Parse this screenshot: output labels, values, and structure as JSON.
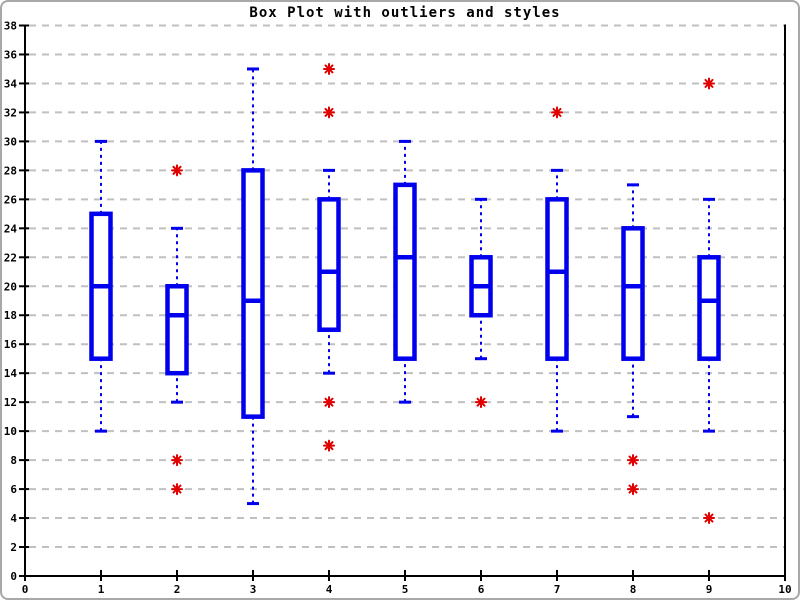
{
  "title": "Box Plot with outliers and styles",
  "colors": {
    "box": "#0000ee",
    "outlier": "#e00000",
    "grid": "#c0c0c0",
    "axis": "#000000",
    "background": "#ffffff",
    "frame": "#a8a8a8"
  },
  "chart_data": {
    "type": "boxplot",
    "title": "Box Plot with outliers and styles",
    "xlabel": "",
    "ylabel": "",
    "xlim": [
      0,
      10
    ],
    "ylim": [
      0,
      38
    ],
    "x_ticks": [
      0,
      1,
      2,
      3,
      4,
      5,
      6,
      7,
      8,
      9,
      10
    ],
    "y_ticks": [
      0,
      2,
      4,
      6,
      8,
      10,
      12,
      14,
      16,
      18,
      20,
      22,
      24,
      26,
      28,
      30,
      32,
      34,
      36,
      38
    ],
    "grid": "horizontal-dashed",
    "legend": "none",
    "boxes": [
      {
        "x": 1,
        "whisker_low": 10,
        "q1": 15,
        "median": 20,
        "q3": 25,
        "whisker_high": 30,
        "outliers": []
      },
      {
        "x": 2,
        "whisker_low": 12,
        "q1": 14,
        "median": 18,
        "q3": 20,
        "whisker_high": 24,
        "outliers": [
          28,
          8,
          6
        ]
      },
      {
        "x": 3,
        "whisker_low": 5,
        "q1": 11,
        "median": 19,
        "q3": 28,
        "whisker_high": 35,
        "outliers": []
      },
      {
        "x": 4,
        "whisker_low": 14,
        "q1": 17,
        "median": 21,
        "q3": 26,
        "whisker_high": 28,
        "outliers": [
          35,
          32,
          12,
          9
        ]
      },
      {
        "x": 5,
        "whisker_low": 12,
        "q1": 15,
        "median": 22,
        "q3": 27,
        "whisker_high": 30,
        "outliers": []
      },
      {
        "x": 6,
        "whisker_low": 15,
        "q1": 18,
        "median": 20,
        "q3": 22,
        "whisker_high": 26,
        "outliers": [
          12
        ]
      },
      {
        "x": 7,
        "whisker_low": 10,
        "q1": 15,
        "median": 21,
        "q3": 26,
        "whisker_high": 28,
        "outliers": [
          32
        ]
      },
      {
        "x": 8,
        "whisker_low": 11,
        "q1": 15,
        "median": 20,
        "q3": 24,
        "whisker_high": 27,
        "outliers": [
          8,
          6
        ]
      },
      {
        "x": 9,
        "whisker_low": 10,
        "q1": 15,
        "median": 19,
        "q3": 22,
        "whisker_high": 26,
        "outliers": [
          34,
          4
        ]
      }
    ]
  }
}
